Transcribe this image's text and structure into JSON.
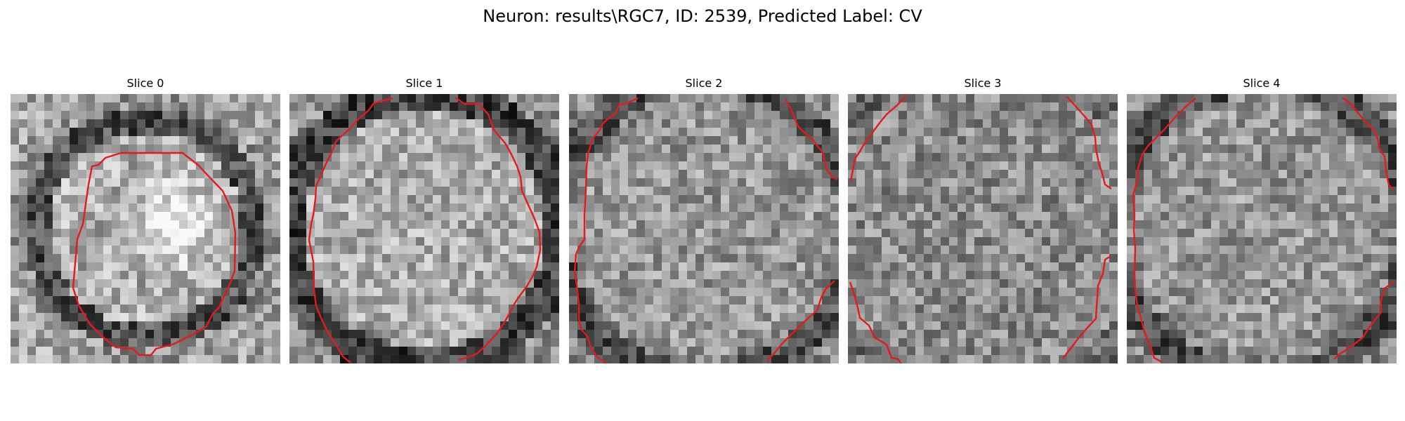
{
  "figure": {
    "title": "Neuron: results\\RGC7, ID: 2539, Predicted Label: CV"
  },
  "slices": [
    {
      "title": "Slice 0",
      "seed": 11,
      "bright": 0.9,
      "structure": "cell-body"
    },
    {
      "title": "Slice 1",
      "seed": 23,
      "bright": 0.72,
      "structure": "ring"
    },
    {
      "title": "Slice 2",
      "seed": 37,
      "bright": 0.66,
      "structure": "ring-faint"
    },
    {
      "title": "Slice 3",
      "seed": 53,
      "bright": 0.7,
      "structure": "texture"
    },
    {
      "title": "Slice 4",
      "seed": 71,
      "bright": 0.62,
      "structure": "ring-faint"
    }
  ],
  "overlay": {
    "contour_color": "#e41a1c",
    "colormap": "gray"
  }
}
